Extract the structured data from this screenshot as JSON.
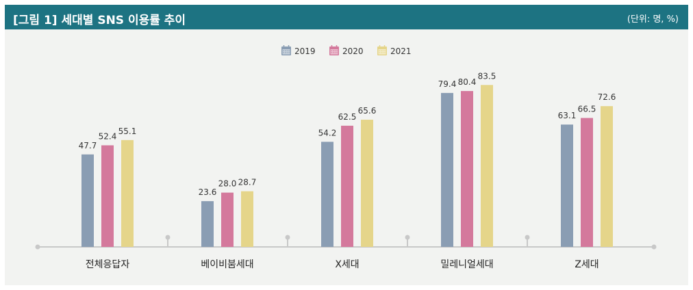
{
  "header": {
    "title": "[그림 1]  세대별 SNS 이용률 추이",
    "unit": "(단위: 명, %)"
  },
  "colors": {
    "header_bg": "#1d7382",
    "panel_bg": "#f2f3f1",
    "axis": "#c8c8c8"
  },
  "legend_icon": "calendar-icon",
  "chart_data": {
    "type": "bar",
    "title": "세대별 SNS 이용률 추이",
    "xlabel": "",
    "ylabel": "",
    "ylim": [
      0,
      90
    ],
    "categories": [
      "전체응답자",
      "베이비붐세대",
      "X세대",
      "밀레니얼세대",
      "Z세대"
    ],
    "series": [
      {
        "name": "2019",
        "color": "#8a9db3",
        "values": [
          47.7,
          23.6,
          54.2,
          79.4,
          63.1
        ]
      },
      {
        "name": "2020",
        "color": "#d4799c",
        "values": [
          52.4,
          28.0,
          62.5,
          80.4,
          66.5
        ]
      },
      {
        "name": "2021",
        "color": "#e5d58a",
        "values": [
          55.1,
          28.7,
          65.6,
          83.5,
          72.6
        ]
      }
    ],
    "data_labels": [
      [
        "47.7",
        "23.6",
        "54.2",
        "79.4",
        "63.1"
      ],
      [
        "52.4",
        "28.0",
        "62.5",
        "80.4",
        "66.5"
      ],
      [
        "55.1",
        "28.7",
        "65.6",
        "83.5",
        "72.6"
      ]
    ],
    "grid": false,
    "legend_position": "top-center"
  }
}
